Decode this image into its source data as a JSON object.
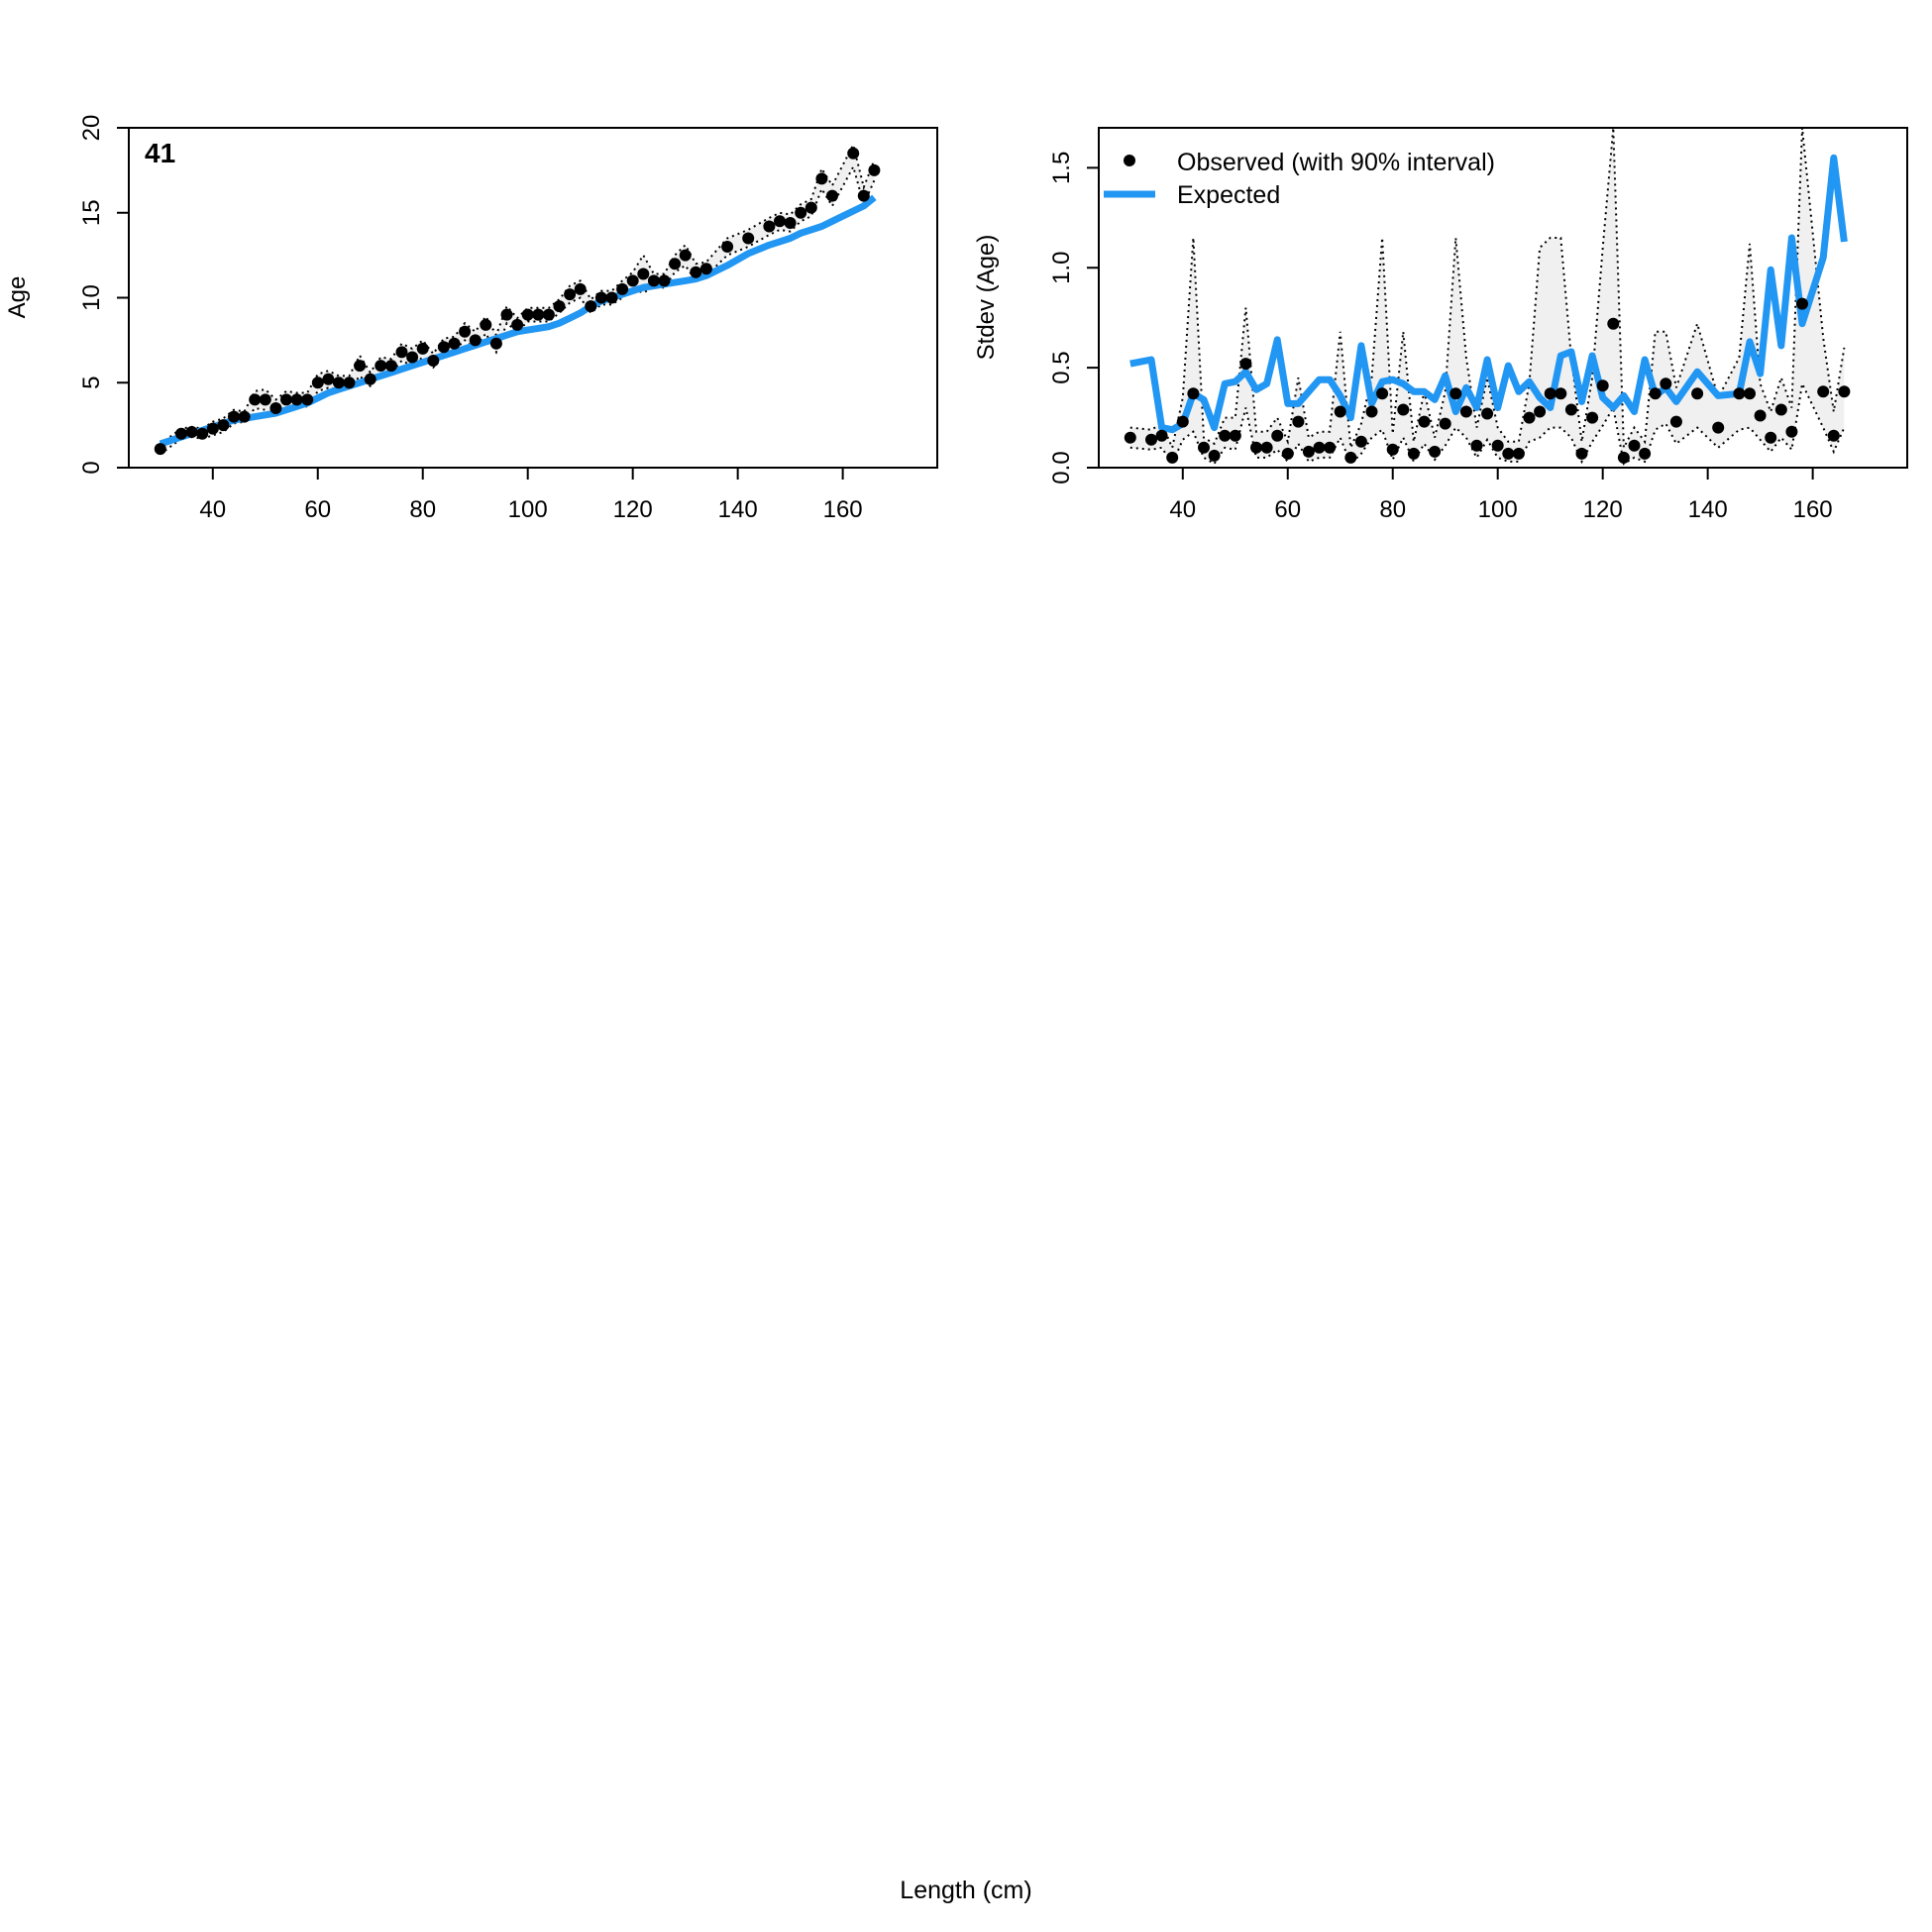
{
  "figure": {
    "xlabel": "Length (cm)",
    "colors": {
      "expected": "#2196F3",
      "band": "#F0F0F0",
      "points": "#000000"
    }
  },
  "chart_data": [
    {
      "type": "line",
      "panel_label": "41",
      "xlabel": "",
      "ylabel": "Age",
      "xlim": [
        24,
        178
      ],
      "ylim": [
        0,
        20
      ],
      "xticks": [
        40,
        60,
        80,
        100,
        120,
        140,
        160
      ],
      "yticks": [
        0,
        5,
        10,
        15,
        20
      ],
      "x": [
        30,
        34,
        36,
        38,
        40,
        42,
        44,
        46,
        48,
        50,
        52,
        54,
        56,
        58,
        60,
        62,
        64,
        66,
        68,
        70,
        72,
        74,
        76,
        78,
        80,
        82,
        84,
        86,
        88,
        90,
        92,
        94,
        96,
        98,
        100,
        102,
        104,
        106,
        108,
        110,
        112,
        114,
        116,
        118,
        120,
        122,
        124,
        126,
        128,
        130,
        132,
        134,
        138,
        142,
        146,
        148,
        150,
        152,
        154,
        156,
        158,
        162,
        164,
        166
      ],
      "series": [
        {
          "name": "Observed (with 90% interval)",
          "kind": "points",
          "values": [
            1.1,
            2.0,
            2.1,
            2.0,
            2.3,
            2.5,
            3.0,
            3.0,
            4.0,
            4.0,
            3.5,
            4.0,
            4.0,
            4.0,
            5.0,
            5.2,
            5.0,
            5.0,
            6.0,
            5.2,
            6.0,
            6.0,
            6.8,
            6.5,
            7.0,
            6.3,
            7.1,
            7.3,
            8.0,
            7.5,
            8.4,
            7.3,
            9.0,
            8.4,
            9.0,
            9.0,
            9.0,
            9.5,
            10.2,
            10.5,
            9.5,
            10.0,
            10.0,
            10.5,
            11.0,
            11.4,
            11.0,
            11.0,
            12.0,
            12.5,
            11.5,
            11.7,
            13.0,
            13.5,
            14.2,
            14.5,
            14.4,
            15.0,
            15.3,
            17.0,
            16.0,
            18.5,
            16.0,
            17.5
          ]
        },
        {
          "name": "Expected",
          "kind": "line",
          "values": [
            1.4,
            1.8,
            2.0,
            2.2,
            2.4,
            2.6,
            2.8,
            2.9,
            3.0,
            3.1,
            3.2,
            3.4,
            3.6,
            3.8,
            4.1,
            4.4,
            4.6,
            4.8,
            5.0,
            5.2,
            5.4,
            5.6,
            5.8,
            6.0,
            6.2,
            6.4,
            6.6,
            6.8,
            7.0,
            7.2,
            7.4,
            7.6,
            7.8,
            8.0,
            8.1,
            8.2,
            8.3,
            8.5,
            8.8,
            9.1,
            9.5,
            9.8,
            10.0,
            10.2,
            10.4,
            10.6,
            10.7,
            10.8,
            10.9,
            11.0,
            11.1,
            11.3,
            11.9,
            12.6,
            13.1,
            13.3,
            13.5,
            13.8,
            14.0,
            14.2,
            14.5,
            15.1,
            15.4,
            15.9
          ]
        }
      ],
      "interval": {
        "lower": [
          0.8,
          1.7,
          1.8,
          1.7,
          1.9,
          2.1,
          2.6,
          2.7,
          3.5,
          3.4,
          3.0,
          3.5,
          3.6,
          3.6,
          4.5,
          4.7,
          4.6,
          4.6,
          5.4,
          4.8,
          5.5,
          5.6,
          6.3,
          6.0,
          6.5,
          5.9,
          6.6,
          6.9,
          7.5,
          7.0,
          7.9,
          6.8,
          8.5,
          8.0,
          8.6,
          8.6,
          8.6,
          9.1,
          9.7,
          10.0,
          9.1,
          9.6,
          9.6,
          10.0,
          10.5,
          10.3,
          10.6,
          10.6,
          11.5,
          11.9,
          11.0,
          11.3,
          12.5,
          13.0,
          13.7,
          14.0,
          13.9,
          14.5,
          14.8,
          16.4,
          15.4,
          17.7,
          15.5,
          16.9
        ],
        "upper": [
          1.4,
          2.3,
          2.4,
          2.3,
          2.7,
          2.9,
          3.4,
          3.3,
          4.5,
          4.6,
          4.0,
          4.5,
          4.4,
          4.4,
          5.5,
          5.7,
          5.4,
          5.4,
          6.6,
          5.6,
          6.5,
          6.4,
          7.3,
          7.0,
          7.5,
          6.7,
          7.6,
          7.7,
          8.5,
          8.0,
          8.9,
          7.8,
          9.5,
          8.8,
          9.4,
          9.4,
          9.4,
          9.9,
          10.7,
          11.0,
          9.9,
          10.4,
          10.4,
          11.0,
          11.5,
          12.5,
          11.4,
          11.4,
          12.5,
          13.1,
          12.0,
          12.1,
          13.5,
          14.0,
          14.7,
          15.0,
          14.9,
          15.5,
          15.8,
          17.6,
          16.6,
          19.0,
          16.5,
          18.1
        ]
      },
      "grid": false
    },
    {
      "type": "line",
      "xlabel": "",
      "ylabel": "Stdev (Age)",
      "xlim": [
        24,
        178
      ],
      "ylim": [
        0,
        1.7
      ],
      "xticks": [
        40,
        60,
        80,
        100,
        120,
        140,
        160
      ],
      "yticks": [
        "0.0",
        "0.5",
        "1.0",
        "1.5"
      ],
      "legend_position": "top-left",
      "x": [
        30,
        34,
        36,
        38,
        40,
        42,
        44,
        46,
        48,
        50,
        52,
        54,
        56,
        58,
        60,
        62,
        64,
        66,
        68,
        70,
        72,
        74,
        76,
        78,
        80,
        82,
        84,
        86,
        88,
        90,
        92,
        94,
        96,
        98,
        100,
        102,
        104,
        106,
        108,
        110,
        112,
        114,
        116,
        118,
        120,
        122,
        124,
        126,
        128,
        130,
        132,
        134,
        138,
        142,
        146,
        148,
        150,
        152,
        154,
        156,
        158,
        162,
        164,
        166
      ],
      "series": [
        {
          "name": "Observed (with 90% interval)",
          "kind": "points",
          "values": [
            0.15,
            0.14,
            0.16,
            0.05,
            0.23,
            0.37,
            0.1,
            0.06,
            0.16,
            0.16,
            0.52,
            0.1,
            0.1,
            0.16,
            0.07,
            0.23,
            0.08,
            0.1,
            0.1,
            0.28,
            0.05,
            0.13,
            0.28,
            0.37,
            0.09,
            0.29,
            0.07,
            0.23,
            0.08,
            0.22,
            0.37,
            0.28,
            0.11,
            0.27,
            0.11,
            0.07,
            0.07,
            0.25,
            0.28,
            0.37,
            0.37,
            0.29,
            0.07,
            0.25,
            0.41,
            0.72,
            0.05,
            0.11,
            0.07,
            0.37,
            0.42,
            0.23,
            0.37,
            0.2,
            0.37,
            0.37,
            0.26,
            0.15,
            0.29,
            0.18,
            0.82,
            0.38,
            0.16,
            0.38
          ]
        },
        {
          "name": "Expected",
          "kind": "line",
          "values": [
            0.52,
            0.54,
            0.2,
            0.19,
            0.22,
            0.37,
            0.34,
            0.2,
            0.42,
            0.43,
            0.48,
            0.39,
            0.42,
            0.64,
            0.32,
            0.32,
            0.38,
            0.44,
            0.44,
            0.36,
            0.25,
            0.61,
            0.32,
            0.43,
            0.44,
            0.42,
            0.38,
            0.38,
            0.34,
            0.46,
            0.28,
            0.4,
            0.3,
            0.54,
            0.3,
            0.51,
            0.38,
            0.43,
            0.35,
            0.3,
            0.56,
            0.58,
            0.33,
            0.56,
            0.35,
            0.3,
            0.36,
            0.28,
            0.54,
            0.36,
            0.4,
            0.33,
            0.48,
            0.36,
            0.37,
            0.63,
            0.47,
            0.99,
            0.61,
            1.15,
            0.72,
            1.05,
            1.55,
            1.13
          ]
        }
      ],
      "interval": {
        "lower": [
          0.1,
          0.09,
          0.1,
          0.02,
          0.14,
          0.18,
          0.05,
          0.02,
          0.1,
          0.09,
          0.3,
          0.05,
          0.05,
          0.09,
          0.03,
          0.12,
          0.03,
          0.05,
          0.05,
          0.15,
          0.02,
          0.07,
          0.15,
          0.19,
          0.04,
          0.15,
          0.03,
          0.12,
          0.04,
          0.11,
          0.2,
          0.15,
          0.05,
          0.14,
          0.05,
          0.03,
          0.03,
          0.13,
          0.15,
          0.2,
          0.2,
          0.15,
          0.03,
          0.13,
          0.21,
          0.3,
          0.02,
          0.05,
          0.03,
          0.19,
          0.22,
          0.12,
          0.2,
          0.1,
          0.19,
          0.2,
          0.14,
          0.08,
          0.15,
          0.09,
          0.42,
          0.2,
          0.08,
          0.2
        ],
        "upper": [
          0.2,
          0.19,
          0.22,
          0.1,
          0.35,
          1.15,
          0.15,
          0.12,
          0.25,
          0.25,
          0.8,
          0.18,
          0.18,
          0.25,
          0.13,
          0.45,
          0.15,
          0.18,
          0.18,
          0.68,
          0.1,
          0.22,
          0.45,
          1.15,
          0.17,
          0.68,
          0.13,
          0.38,
          0.15,
          0.38,
          1.15,
          0.55,
          0.2,
          0.45,
          0.2,
          0.13,
          0.13,
          0.42,
          1.1,
          1.15,
          1.15,
          0.55,
          0.13,
          0.45,
          1.1,
          1.7,
          0.1,
          0.2,
          0.13,
          0.68,
          0.68,
          0.4,
          0.72,
          0.35,
          0.55,
          1.12,
          0.42,
          0.28,
          0.45,
          0.3,
          1.72,
          0.65,
          0.28,
          0.6
        ]
      },
      "grid": false
    }
  ]
}
